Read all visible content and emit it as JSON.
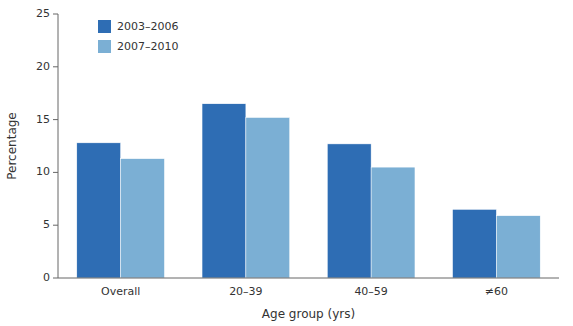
{
  "chart_data": {
    "type": "bar",
    "xlabel": "Age group (yrs)",
    "ylabel": "Percentage",
    "categories": [
      "Overall",
      "20–39",
      "40–59",
      "≠60"
    ],
    "series": [
      {
        "name": "2003–2006",
        "color": "#2E6DB4",
        "values": [
          12.8,
          16.5,
          12.7,
          6.5
        ]
      },
      {
        "name": "2007–2010",
        "color": "#7BAFD4",
        "values": [
          11.3,
          15.2,
          10.5,
          5.9
        ]
      }
    ],
    "ylim": [
      0,
      25
    ],
    "yticks": [
      0,
      5,
      10,
      15,
      20,
      25
    ],
    "grid": false,
    "legend": "upper left"
  }
}
